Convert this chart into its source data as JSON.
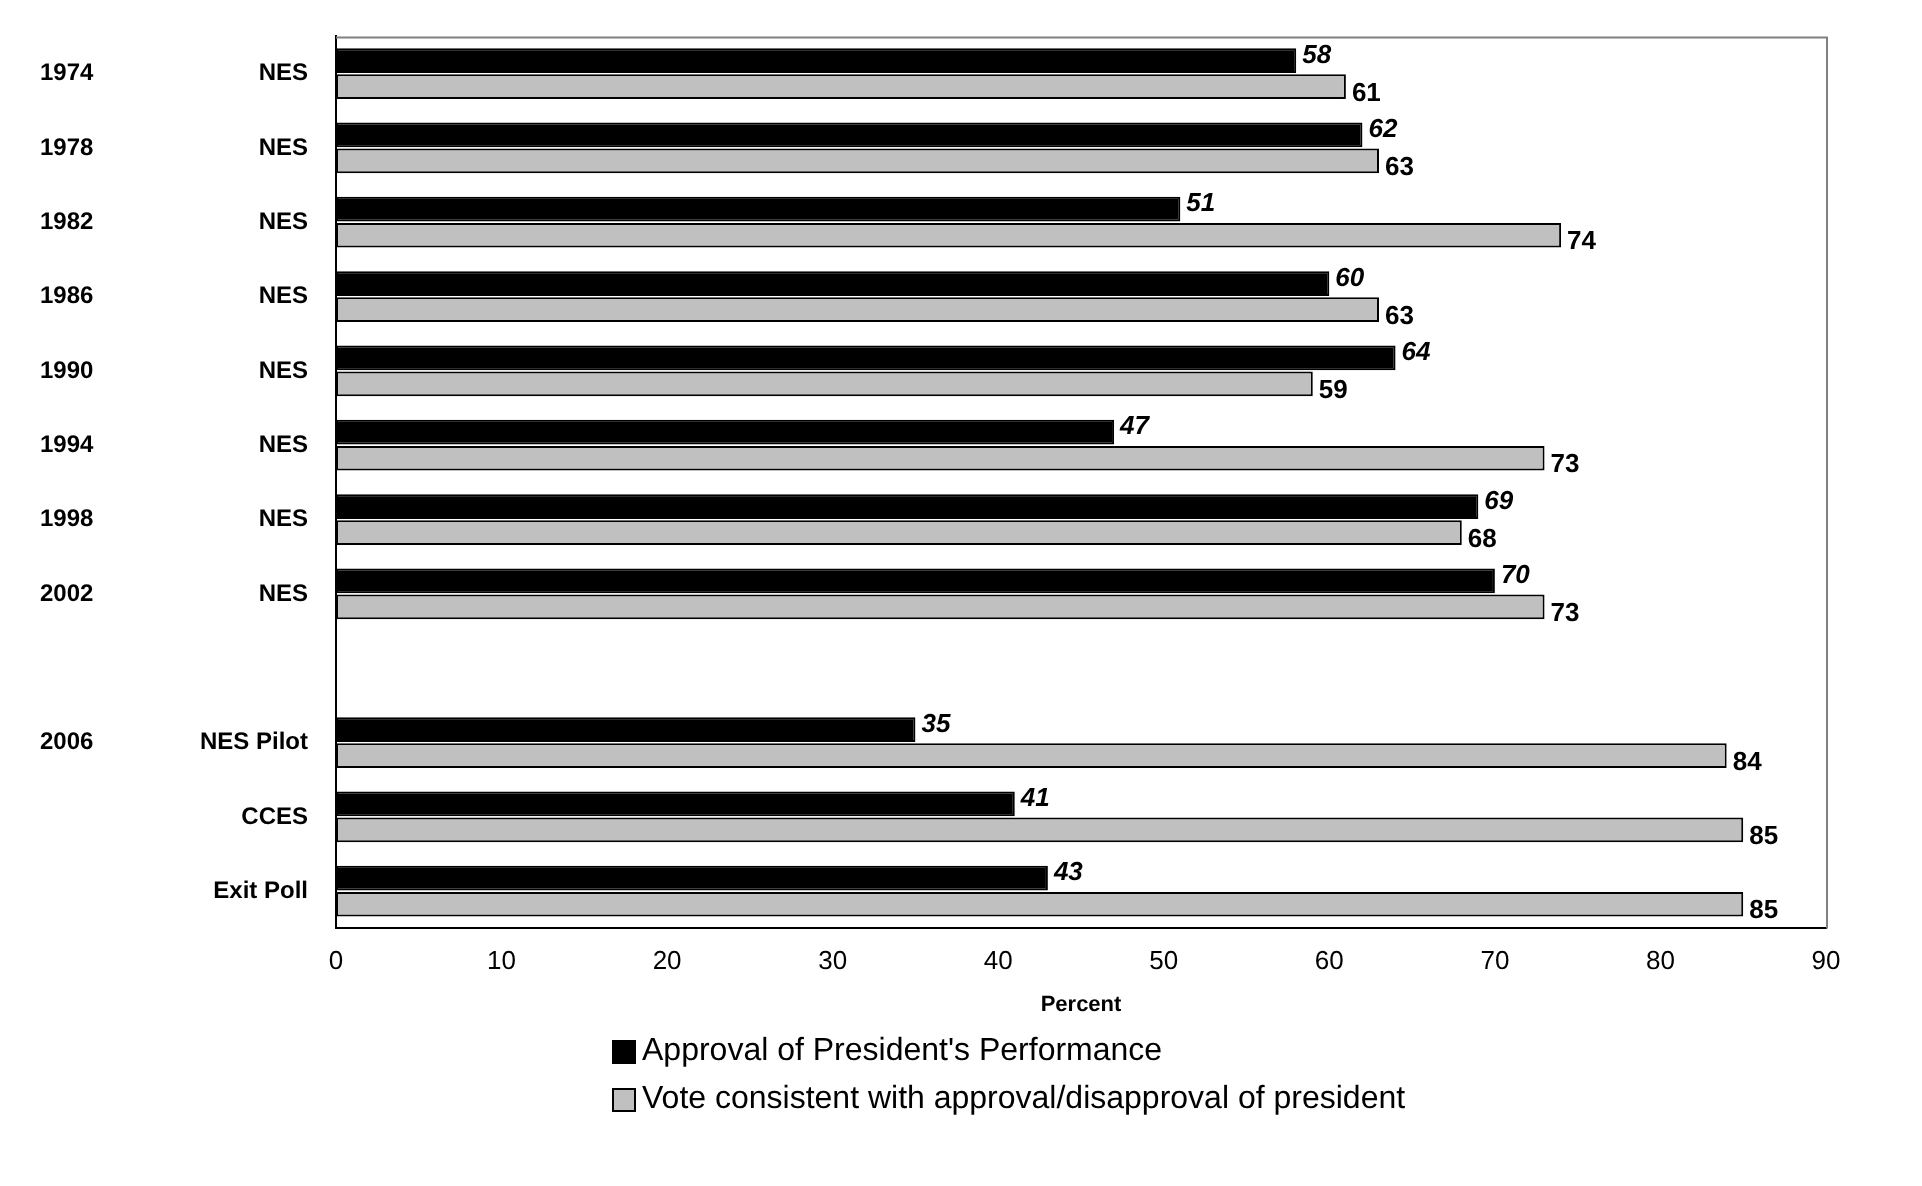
{
  "chart_data": {
    "type": "bar",
    "orientation": "horizontal",
    "xlabel": "Percent",
    "categories": [
      "1974 NES",
      "1978 NES",
      "1982 NES",
      "1986 NES",
      "1990 NES",
      "1994 NES",
      "1998 NES",
      "2002 NES",
      null,
      "2006 NES Pilot",
      "CCES",
      "Exit Poll"
    ],
    "series": [
      {
        "name": "Approval of President's Performance",
        "color": "#000000",
        "values": [
          58,
          62,
          51,
          60,
          64,
          47,
          69,
          70,
          null,
          35,
          41,
          43
        ]
      },
      {
        "name": "Vote consistent with approval/disapproval of president",
        "color": "#c0c0c0",
        "values": [
          61,
          63,
          74,
          63,
          59,
          73,
          68,
          73,
          null,
          84,
          85,
          85
        ]
      }
    ],
    "xlim": [
      0,
      90
    ],
    "xticks": [
      0,
      10,
      20,
      30,
      40,
      50,
      60,
      70,
      80,
      90
    ],
    "grid": false,
    "legend": "bottom",
    "data_labels": true
  }
}
